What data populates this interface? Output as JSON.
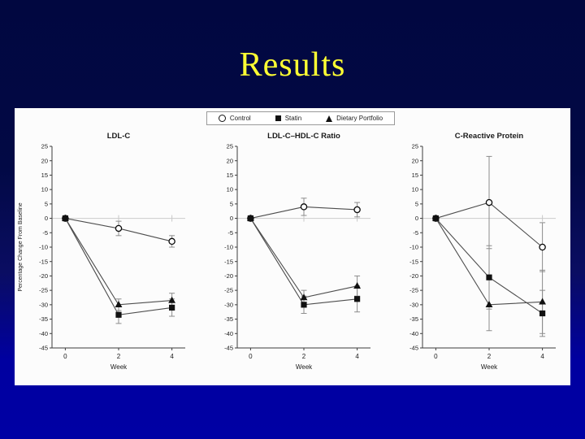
{
  "slide": {
    "title": "Results",
    "title_color": "#FFFF33",
    "background_top": "#010740",
    "background_bottom": "#0000A4",
    "panel_color": "#FCFCFC"
  },
  "legend": {
    "position": "top-center",
    "items": [
      {
        "label": "Control",
        "marker": "circle"
      },
      {
        "label": "Statin",
        "marker": "square"
      },
      {
        "label": "Dietary Portfolio",
        "marker": "triangle"
      }
    ]
  },
  "chart_data": [
    {
      "type": "line",
      "title": "LDL-C",
      "x": [
        0,
        2,
        4
      ],
      "xlabel": "Week",
      "ylabel": "Percentage Change From Baseline",
      "ylim": [
        -45,
        25
      ],
      "ytick_step": 5,
      "zero_line": true,
      "series": [
        {
          "name": "Control",
          "marker": "circle",
          "values": [
            0,
            -3.5,
            -8
          ],
          "errors": [
            0,
            2.5,
            2
          ]
        },
        {
          "name": "Statin",
          "marker": "square",
          "values": [
            0,
            -33.5,
            -31
          ],
          "errors": [
            0,
            3,
            3
          ]
        },
        {
          "name": "Dietary Portfolio",
          "marker": "triangle",
          "values": [
            0,
            -30,
            -28.5
          ],
          "errors": [
            0,
            2,
            2.5
          ]
        }
      ]
    },
    {
      "type": "line",
      "title": "LDL-C–HDL-C Ratio",
      "x": [
        0,
        2,
        4
      ],
      "xlabel": "Week",
      "ylabel": "",
      "ylim": [
        -45,
        25
      ],
      "ytick_step": 5,
      "zero_line": true,
      "series": [
        {
          "name": "Control",
          "marker": "circle",
          "values": [
            0,
            4,
            3
          ],
          "errors": [
            0,
            3,
            2.5
          ]
        },
        {
          "name": "Statin",
          "marker": "square",
          "values": [
            0,
            -30,
            -28
          ],
          "errors": [
            0,
            3,
            4.5
          ]
        },
        {
          "name": "Dietary Portfolio",
          "marker": "triangle",
          "values": [
            0,
            -27.5,
            -23.5
          ],
          "errors": [
            0,
            2.5,
            3.5
          ]
        }
      ]
    },
    {
      "type": "line",
      "title": "C-Reactive Protein",
      "x": [
        0,
        2,
        4
      ],
      "xlabel": "Week",
      "ylabel": "",
      "ylim": [
        -45,
        25
      ],
      "ytick_step": 5,
      "zero_line": true,
      "series": [
        {
          "name": "Control",
          "marker": "circle",
          "values": [
            0,
            5.5,
            -10
          ],
          "errors": [
            0,
            16,
            8.5
          ]
        },
        {
          "name": "Statin",
          "marker": "square",
          "values": [
            0,
            -20.5,
            -33
          ],
          "errors": [
            0,
            11,
            8
          ]
        },
        {
          "name": "Dietary Portfolio",
          "marker": "triangle",
          "values": [
            0,
            -30,
            -29
          ],
          "errors": [
            0,
            9,
            11
          ]
        }
      ]
    }
  ]
}
